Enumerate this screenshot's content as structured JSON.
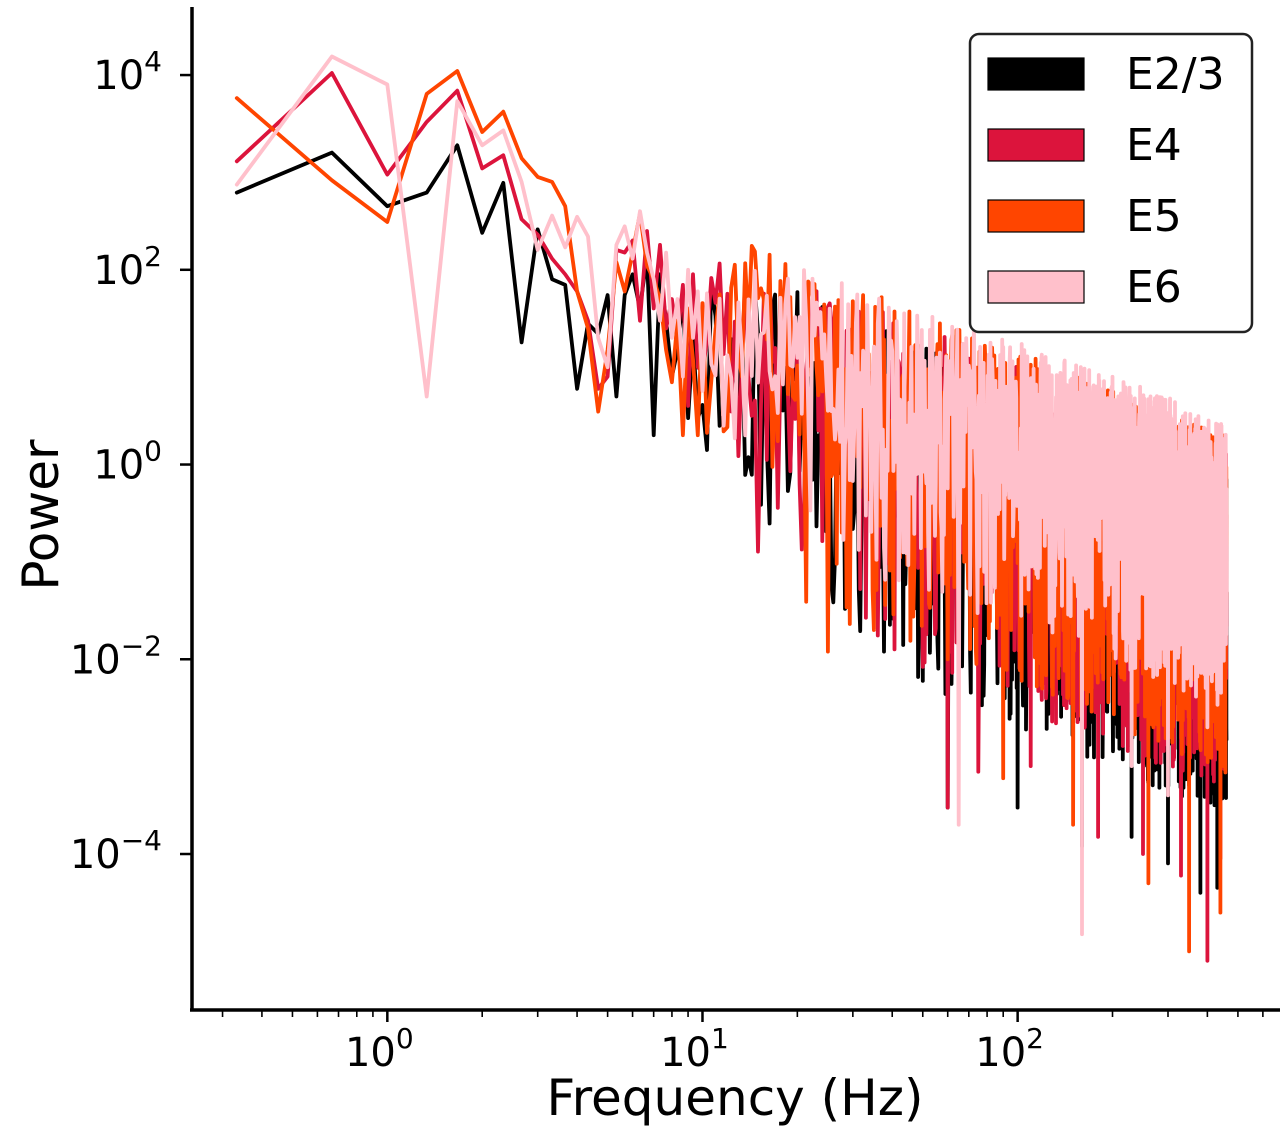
{
  "chart_data": {
    "type": "line",
    "xlabel": "Frequency (Hz)",
    "ylabel": "Power",
    "xscale": "log",
    "yscale": "log",
    "xlim": [
      0.24,
      680
    ],
    "ylim": [
      2.5e-06,
      50000
    ],
    "x_ticks": [
      {
        "value": 1,
        "base": "10",
        "exp": "0"
      },
      {
        "value": 10,
        "base": "10",
        "exp": "1"
      },
      {
        "value": 100,
        "base": "10",
        "exp": "2"
      }
    ],
    "y_ticks": [
      {
        "value": 0.0001,
        "base": "10",
        "exp": "−4"
      },
      {
        "value": 0.01,
        "base": "10",
        "exp": "−2"
      },
      {
        "value": 1,
        "base": "10",
        "exp": "0"
      },
      {
        "value": 100,
        "base": "10",
        "exp": "2"
      },
      {
        "value": 10000,
        "base": "10",
        "exp": "4"
      }
    ],
    "grid": false,
    "legend_position": "top-right",
    "series": [
      {
        "name": "E2/3",
        "color": "#000000",
        "low_freq": [
          [
            0.333,
            620
          ],
          [
            0.667,
            1600
          ],
          [
            1.0,
            450
          ],
          [
            1.333,
            620
          ],
          [
            1.667,
            1900
          ],
          [
            2.0,
            240
          ],
          [
            2.333,
            780
          ],
          [
            2.667,
            18
          ],
          [
            3.0,
            260
          ],
          [
            3.333,
            80
          ],
          [
            3.667,
            70
          ],
          [
            4.0,
            6
          ],
          [
            4.333,
            28
          ],
          [
            4.667,
            22
          ],
          [
            5.0,
            55
          ],
          [
            5.333,
            5
          ],
          [
            5.667,
            55
          ],
          [
            6.0,
            90
          ],
          [
            6.333,
            40
          ],
          [
            6.667,
            140
          ],
          [
            7.0,
            2
          ],
          [
            7.333,
            90
          ],
          [
            7.667,
            30
          ],
          [
            8.0,
            8
          ],
          [
            8.333,
            15
          ],
          [
            8.667,
            55
          ],
          [
            9.0,
            3
          ],
          [
            9.333,
            20
          ],
          [
            9.667,
            3
          ]
        ],
        "trend": {
          "a": 160,
          "b": -1.95,
          "spread": 1.0,
          "seed": 11
        },
        "minima": [
          [
            50,
            0.006
          ],
          [
            60,
            0.0003
          ],
          [
            100,
            0.0003
          ],
          [
            160,
            0.00012
          ],
          [
            230,
            0.00015
          ],
          [
            300,
            8e-05
          ],
          [
            380,
            4e-05
          ],
          [
            430,
            4.5e-05
          ]
        ],
        "last": [
          460,
          0.0015
        ]
      },
      {
        "name": "E4",
        "color": "#dc143c",
        "low_freq": [
          [
            0.333,
            1300
          ],
          [
            0.667,
            10500
          ],
          [
            1.0,
            950
          ],
          [
            1.333,
            3300
          ],
          [
            1.667,
            6900
          ],
          [
            2.0,
            1100
          ],
          [
            2.333,
            1500
          ],
          [
            2.667,
            330
          ],
          [
            3.0,
            230
          ],
          [
            3.333,
            130
          ],
          [
            3.667,
            90
          ],
          [
            4.0,
            60
          ],
          [
            4.333,
            30
          ],
          [
            4.667,
            6
          ],
          [
            5.0,
            8
          ],
          [
            5.333,
            160
          ],
          [
            5.667,
            150
          ],
          [
            6.0,
            200
          ],
          [
            6.333,
            30
          ],
          [
            6.667,
            250
          ],
          [
            7.0,
            40
          ],
          [
            7.333,
            180
          ],
          [
            7.667,
            25
          ],
          [
            8.0,
            50
          ],
          [
            8.333,
            20
          ],
          [
            8.667,
            70
          ],
          [
            9.0,
            4
          ],
          [
            9.333,
            90
          ],
          [
            9.667,
            10
          ]
        ],
        "trend": {
          "a": 200,
          "b": -1.9,
          "spread": 1.0,
          "seed": 23
        },
        "minima": [
          [
            60,
            0.0003
          ],
          [
            75,
            0.0007
          ],
          [
            110,
            0.0008
          ],
          [
            180,
            0.00015
          ],
          [
            250,
            0.0001
          ],
          [
            330,
            6e-05
          ],
          [
            400,
            8e-06
          ],
          [
            440,
            9e-05
          ]
        ],
        "last": [
          460,
          0.3
        ]
      },
      {
        "name": "E5",
        "color": "#ff4500",
        "low_freq": [
          [
            0.333,
            5800
          ],
          [
            0.667,
            830
          ],
          [
            1.0,
            310
          ],
          [
            1.333,
            6400
          ],
          [
            1.667,
            11000
          ],
          [
            2.0,
            2600
          ],
          [
            2.333,
            4200
          ],
          [
            2.667,
            1400
          ],
          [
            3.0,
            900
          ],
          [
            3.333,
            800
          ],
          [
            3.667,
            450
          ],
          [
            4.0,
            60
          ],
          [
            4.333,
            25
          ],
          [
            4.667,
            3.5
          ],
          [
            5.0,
            15
          ],
          [
            5.333,
            120
          ],
          [
            5.667,
            60
          ],
          [
            6.0,
            150
          ],
          [
            6.333,
            380
          ],
          [
            6.667,
            110
          ],
          [
            7.0,
            80
          ],
          [
            7.333,
            50
          ],
          [
            7.667,
            15
          ],
          [
            8.0,
            7
          ],
          [
            8.333,
            30
          ],
          [
            8.667,
            2
          ],
          [
            9.0,
            40
          ],
          [
            9.333,
            12
          ],
          [
            9.667,
            2
          ]
        ],
        "trend": {
          "a": 230,
          "b": -1.85,
          "spread": 1.0,
          "seed": 37
        },
        "minima": [
          [
            25,
            0.012
          ],
          [
            35,
            0.02
          ],
          [
            60,
            0.01
          ],
          [
            90,
            0.0006
          ],
          [
            150,
            0.0002
          ],
          [
            260,
            5e-05
          ],
          [
            350,
            1e-05
          ],
          [
            440,
            2.5e-05
          ]
        ],
        "last": [
          460,
          0.2
        ]
      },
      {
        "name": "E6",
        "color": "#ffc0cb",
        "low_freq": [
          [
            0.333,
            750
          ],
          [
            0.667,
            15500
          ],
          [
            1.0,
            8000
          ],
          [
            1.333,
            5
          ],
          [
            1.667,
            5400
          ],
          [
            2.0,
            1900
          ],
          [
            2.333,
            2700
          ],
          [
            2.667,
            800
          ],
          [
            3.0,
            160
          ],
          [
            3.333,
            360
          ],
          [
            3.667,
            170
          ],
          [
            4.0,
            350
          ],
          [
            4.333,
            220
          ],
          [
            4.667,
            20
          ],
          [
            5.0,
            10
          ],
          [
            5.333,
            180
          ],
          [
            5.667,
            280
          ],
          [
            6.0,
            130
          ],
          [
            6.333,
            400
          ],
          [
            6.667,
            150
          ],
          [
            7.0,
            80
          ],
          [
            7.333,
            30
          ],
          [
            7.667,
            150
          ],
          [
            8.0,
            20
          ],
          [
            8.333,
            50
          ],
          [
            8.667,
            8
          ],
          [
            9.0,
            100
          ],
          [
            9.333,
            20
          ],
          [
            9.667,
            60
          ]
        ],
        "trend": {
          "a": 300,
          "b": -1.75,
          "spread": 0.85,
          "seed": 53
        },
        "minima": [
          [
            65,
            0.0002
          ],
          [
            160,
            1.5e-05
          ],
          [
            230,
            0.0008
          ],
          [
            300,
            0.0004
          ],
          [
            400,
            0.002
          ]
        ],
        "last": [
          460,
          0.05
        ]
      }
    ]
  },
  "legend": {
    "items": [
      {
        "label": "E2/3",
        "color": "#000000"
      },
      {
        "label": "E4",
        "color": "#dc143c"
      },
      {
        "label": "E5",
        "color": "#ff4500"
      },
      {
        "label": "E6",
        "color": "#ffc0cb"
      }
    ]
  }
}
